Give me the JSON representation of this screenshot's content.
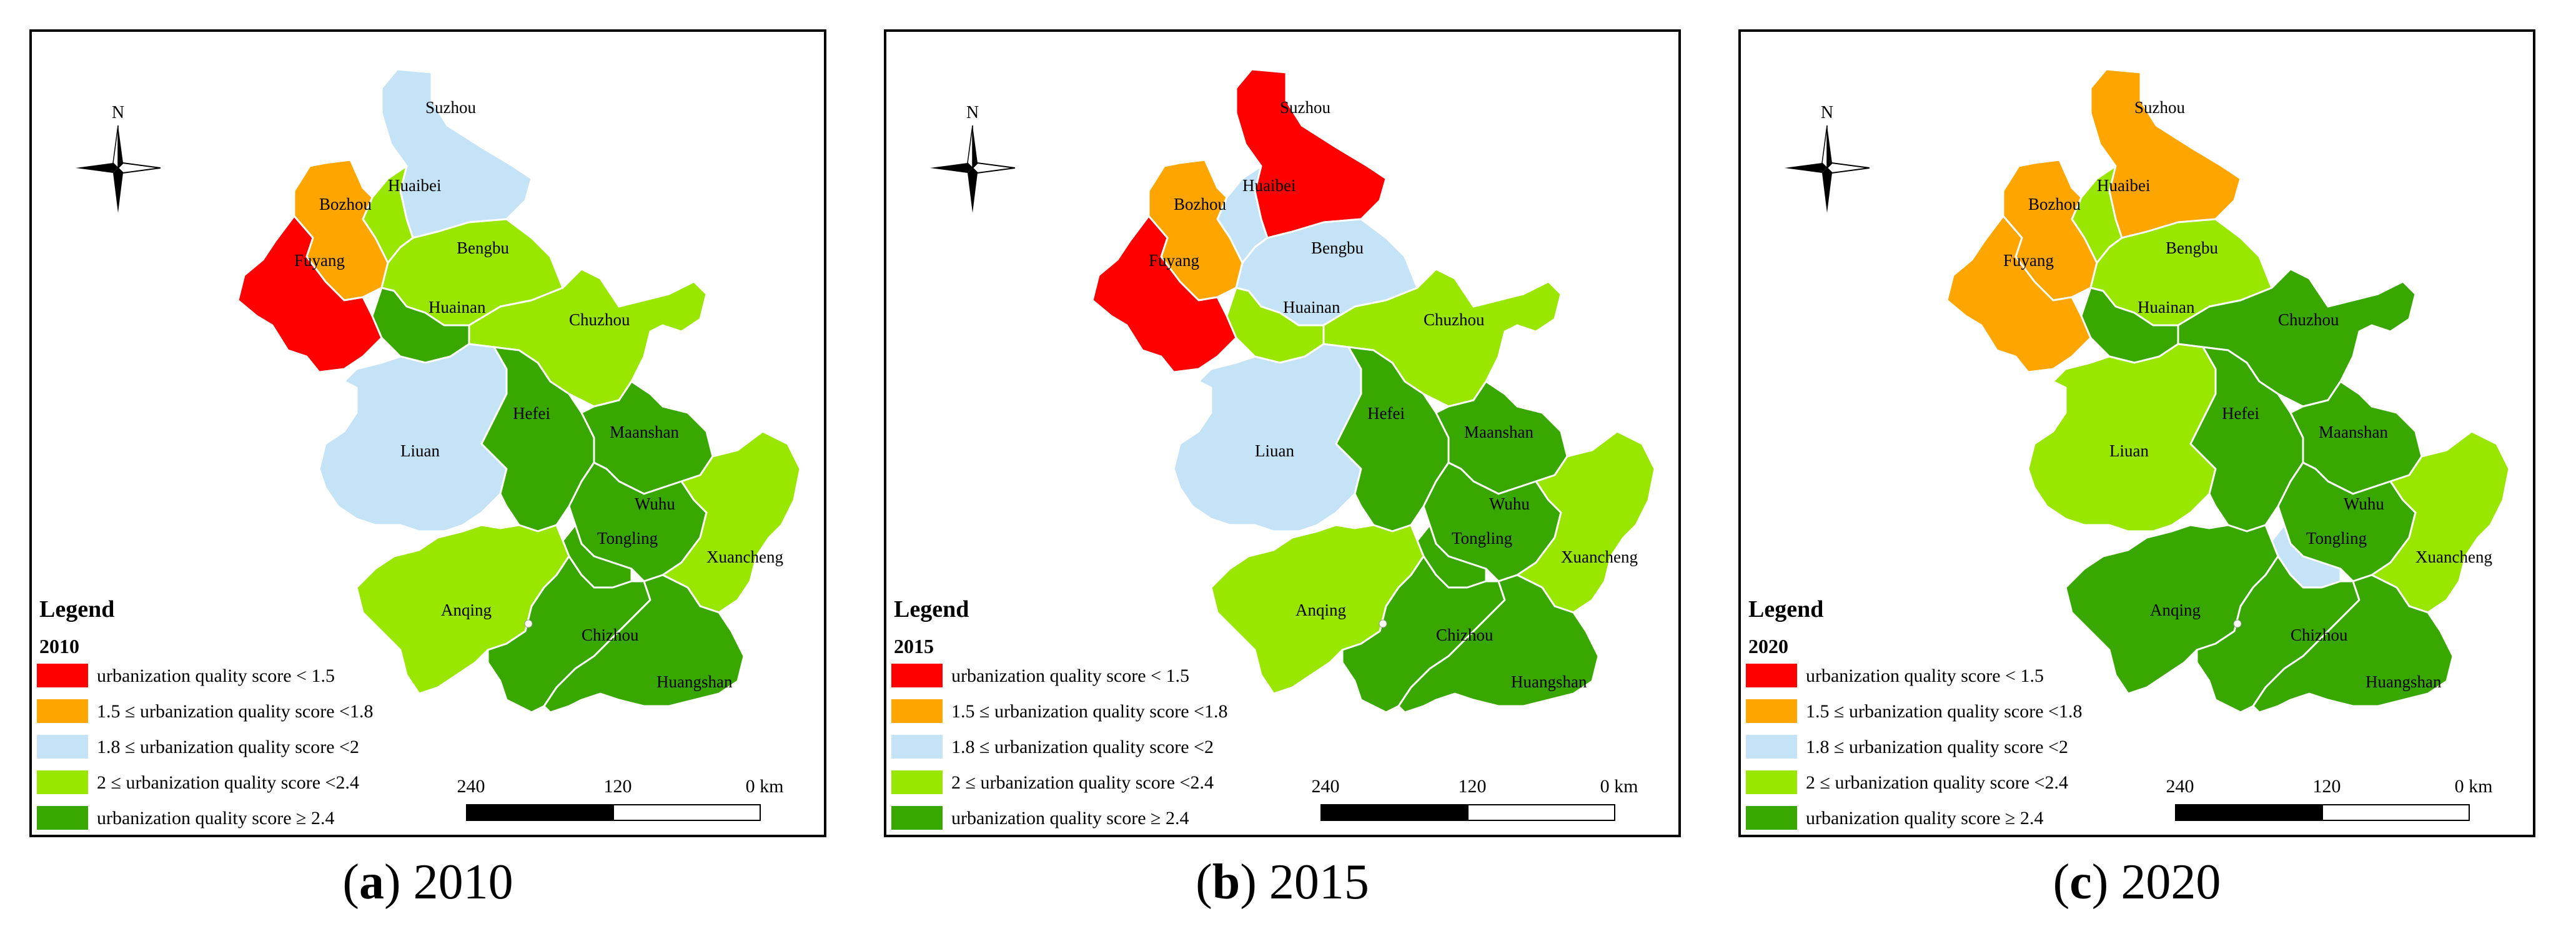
{
  "colors": {
    "lt1_5": "#ff0000",
    "c1_5_1_8": "#ffa500",
    "c1_8_2": "#c5e3f6",
    "c2_2_4": "#99e600",
    "ge2_4": "#38a800"
  },
  "legend_items": [
    {
      "key": "lt1_5",
      "label": "urbanization quality score < 1.5"
    },
    {
      "key": "c1_5_1_8",
      "label": "1.5 ≤ urbanization quality score <1.8"
    },
    {
      "key": "c1_8_2",
      "label": "1.8 ≤ urbanization quality score <2"
    },
    {
      "key": "c2_2_4",
      "label": "2 ≤ urbanization quality score <2.4"
    },
    {
      "key": "ge2_4",
      "label": "urbanization quality score ≥ 2.4"
    }
  ],
  "scale": {
    "labels": [
      "240",
      "120",
      "0 km"
    ]
  },
  "north_label": "N",
  "legend_title": "Legend",
  "panels": [
    {
      "id": "a",
      "year": "2010",
      "caption_letter": "a",
      "caption_year": "2010",
      "cities": {
        "Suzhou": "c1_8_2",
        "Huaibei": "c2_2_4",
        "Bozhou": "c1_5_1_8",
        "Fuyang": "lt1_5",
        "Bengbu": "c2_2_4",
        "Huainan": "ge2_4",
        "Chuzhou": "c2_2_4",
        "Liuan": "c1_8_2",
        "Hefei": "ge2_4",
        "Maanshan": "ge2_4",
        "Wuhu": "ge2_4",
        "Tongling": "ge2_4",
        "Xuancheng": "c2_2_4",
        "Anqing": "c2_2_4",
        "Chizhou": "ge2_4",
        "Huangshan": "ge2_4"
      }
    },
    {
      "id": "b",
      "year": "2015",
      "caption_letter": "b",
      "caption_year": "2015",
      "cities": {
        "Suzhou": "lt1_5",
        "Huaibei": "c1_8_2",
        "Bozhou": "c1_5_1_8",
        "Fuyang": "lt1_5",
        "Bengbu": "c1_8_2",
        "Huainan": "c2_2_4",
        "Chuzhou": "c2_2_4",
        "Liuan": "c1_8_2",
        "Hefei": "ge2_4",
        "Maanshan": "ge2_4",
        "Wuhu": "ge2_4",
        "Tongling": "ge2_4",
        "Xuancheng": "c2_2_4",
        "Anqing": "c2_2_4",
        "Chizhou": "ge2_4",
        "Huangshan": "ge2_4"
      }
    },
    {
      "id": "c",
      "year": "2020",
      "caption_letter": "c",
      "caption_year": "2020",
      "cities": {
        "Suzhou": "c1_5_1_8",
        "Huaibei": "c2_2_4",
        "Bozhou": "c1_5_1_8",
        "Fuyang": "c1_5_1_8",
        "Bengbu": "c2_2_4",
        "Huainan": "ge2_4",
        "Chuzhou": "ge2_4",
        "Liuan": "c2_2_4",
        "Hefei": "ge2_4",
        "Maanshan": "ge2_4",
        "Wuhu": "ge2_4",
        "Tongling": "c1_8_2",
        "Xuancheng": "c2_2_4",
        "Anqing": "ge2_4",
        "Chizhou": "ge2_4",
        "Huangshan": "ge2_4"
      }
    }
  ]
}
